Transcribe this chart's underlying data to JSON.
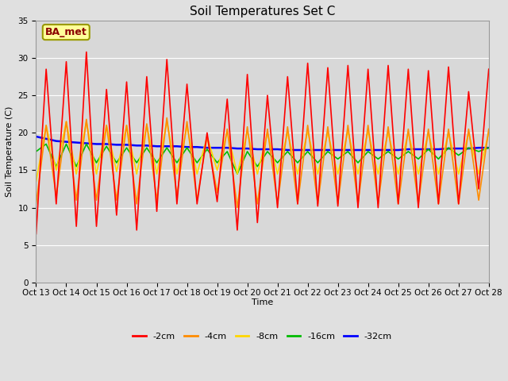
{
  "title": "Soil Temperatures Set C",
  "xlabel": "Time",
  "ylabel": "Soil Temperature (C)",
  "annotation": "BA_met",
  "ylim": [
    0,
    35
  ],
  "series": {
    "-2cm": {
      "color": "#FF0000",
      "linewidth": 1.2
    },
    "-4cm": {
      "color": "#FF8C00",
      "linewidth": 1.2
    },
    "-8cm": {
      "color": "#FFD700",
      "linewidth": 1.2
    },
    "-16cm": {
      "color": "#00BB00",
      "linewidth": 1.2
    },
    "-32cm": {
      "color": "#0000FF",
      "linewidth": 1.8
    }
  },
  "fig_bg_color": "#E0E0E0",
  "plot_bg_color": "#D8D8D8",
  "title_fontsize": 11,
  "axis_label_fontsize": 8,
  "tick_fontsize": 7.5,
  "legend_fontsize": 8,
  "annotation_box_color": "#FFFF99",
  "annotation_border_color": "#999900",
  "x_tick_labels": [
    "Oct 13",
    "Oct 14",
    "Oct 15",
    "Oct 16",
    "Oct 17",
    "Oct 18",
    "Oct 19",
    "Oct 20",
    "Oct 21",
    "Oct 22",
    "Oct 23",
    "Oct 24",
    "Oct 25",
    "Oct 26",
    "Oct 27",
    "Oct 28"
  ],
  "data_2cm": [
    6.5,
    28.5,
    10.5,
    29.5,
    7.5,
    30.8,
    7.5,
    25.8,
    9.0,
    26.8,
    7.0,
    27.5,
    9.5,
    29.8,
    10.5,
    26.5,
    10.5,
    20.0,
    10.8,
    24.5,
    7.0,
    27.8,
    8.0,
    25.0,
    10.0,
    27.5,
    10.5,
    29.3,
    10.2,
    28.7,
    10.2,
    29.0,
    10.0,
    28.5,
    10.0,
    29.0,
    10.5,
    28.5,
    10.0,
    28.3,
    10.5,
    28.8,
    10.5,
    25.5,
    12.5,
    28.5
  ],
  "data_4cm": [
    10.5,
    21.0,
    11.5,
    21.5,
    11.0,
    21.8,
    11.0,
    21.0,
    11.0,
    21.0,
    10.5,
    21.2,
    11.0,
    22.0,
    11.5,
    21.5,
    11.0,
    19.5,
    12.0,
    20.5,
    10.0,
    20.8,
    10.5,
    20.5,
    10.5,
    20.8,
    10.5,
    21.0,
    10.5,
    20.8,
    10.5,
    21.0,
    10.5,
    21.0,
    10.5,
    20.8,
    10.5,
    20.5,
    10.5,
    20.5,
    10.5,
    20.5,
    10.5,
    20.5,
    11.0,
    20.5
  ],
  "data_8cm": [
    13.5,
    21.0,
    15.0,
    21.5,
    14.5,
    21.5,
    14.5,
    21.0,
    14.8,
    21.0,
    14.5,
    21.0,
    14.5,
    21.5,
    14.5,
    20.8,
    14.5,
    19.5,
    15.0,
    20.2,
    14.5,
    20.2,
    14.5,
    20.0,
    14.5,
    20.0,
    14.5,
    20.2,
    14.5,
    20.0,
    14.5,
    20.2,
    14.5,
    20.2,
    14.5,
    20.0,
    14.5,
    20.0,
    14.5,
    20.0,
    14.5,
    20.0,
    14.5,
    20.0,
    14.5,
    20.0
  ],
  "data_16cm": [
    17.5,
    18.5,
    15.5,
    18.5,
    15.5,
    18.5,
    16.0,
    18.2,
    16.0,
    18.0,
    16.0,
    18.0,
    16.0,
    18.0,
    16.0,
    18.0,
    16.0,
    17.8,
    16.0,
    17.5,
    14.5,
    17.5,
    15.5,
    17.5,
    16.0,
    17.5,
    16.0,
    17.5,
    16.0,
    17.5,
    16.5,
    17.5,
    16.0,
    17.5,
    16.5,
    17.5,
    16.5,
    17.5,
    16.5,
    17.8,
    16.5,
    18.0,
    17.0,
    18.0,
    17.5,
    18.0
  ],
  "data_32cm": [
    19.5,
    19.2,
    18.9,
    18.8,
    18.7,
    18.6,
    18.5,
    18.5,
    18.4,
    18.4,
    18.3,
    18.3,
    18.2,
    18.2,
    18.2,
    18.1,
    18.1,
    18.0,
    18.0,
    18.0,
    17.9,
    17.9,
    17.8,
    17.8,
    17.8,
    17.7,
    17.7,
    17.7,
    17.7,
    17.7,
    17.7,
    17.7,
    17.7,
    17.7,
    17.7,
    17.7,
    17.7,
    17.8,
    17.8,
    17.8,
    17.8,
    17.9,
    17.9,
    17.9,
    18.0,
    18.0
  ]
}
